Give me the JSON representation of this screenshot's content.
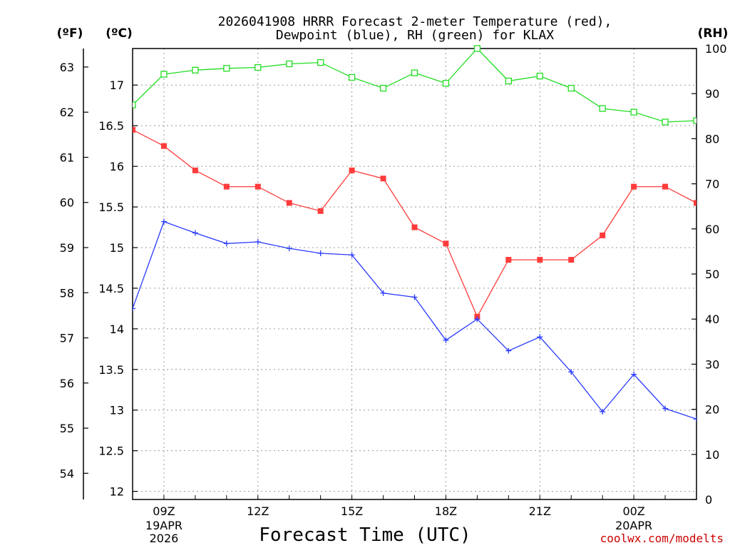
{
  "chart_data": {
    "type": "line",
    "title_line1": "2026041908 HRRR Forecast 2-meter Temperature (red),",
    "title_line2": "Dewpoint (blue), RH (green) for KLAX",
    "xlabel": "Forecast Time (UTC)",
    "credit": "coolwx.com/modelts",
    "left_f_unit": "(ºF)",
    "left_c_unit": "(ºC)",
    "right_unit": "(RH)",
    "x_hours": [
      8,
      9,
      10,
      11,
      12,
      13,
      14,
      15,
      16,
      17,
      18,
      19,
      20,
      21,
      22,
      23,
      24,
      25,
      26
    ],
    "xlim": [
      8,
      26
    ],
    "x_ticks": [
      {
        "hour": 9,
        "label": "09Z",
        "sub1": "19APR",
        "sub2": "2026"
      },
      {
        "hour": 12,
        "label": "12Z",
        "sub1": "",
        "sub2": ""
      },
      {
        "hour": 15,
        "label": "15Z",
        "sub1": "",
        "sub2": ""
      },
      {
        "hour": 18,
        "label": "18Z",
        "sub1": "",
        "sub2": ""
      },
      {
        "hour": 21,
        "label": "21Z",
        "sub1": "",
        "sub2": ""
      },
      {
        "hour": 24,
        "label": "00Z",
        "sub1": "20APR",
        "sub2": ""
      }
    ],
    "c_range": [
      11.9,
      17.45
    ],
    "c_ticks": [
      "12",
      "12.5",
      "13",
      "13.5",
      "14",
      "14.5",
      "15",
      "15.5",
      "16",
      "16.5",
      "17"
    ],
    "f_ticks": [
      "54",
      "55",
      "56",
      "57",
      "58",
      "59",
      "60",
      "61",
      "62",
      "63"
    ],
    "rh_range": [
      0,
      100
    ],
    "rh_ticks": [
      "0",
      "10",
      "20",
      "30",
      "40",
      "50",
      "60",
      "70",
      "80",
      "90",
      "100"
    ],
    "series": [
      {
        "name": "Temperature",
        "unit": "C",
        "color": "#ff3b3b",
        "marker": "filled-square",
        "values": [
          16.45,
          16.25,
          15.95,
          15.75,
          15.75,
          15.55,
          15.45,
          15.95,
          15.85,
          15.25,
          15.05,
          14.15,
          14.85,
          14.85,
          14.85,
          15.15,
          15.75,
          15.75,
          15.55
        ]
      },
      {
        "name": "Dewpoint",
        "unit": "C",
        "color": "#2b3bff",
        "marker": "plus",
        "values": [
          14.25,
          15.32,
          15.18,
          15.05,
          15.07,
          14.99,
          14.93,
          14.91,
          14.44,
          14.39,
          13.86,
          14.12,
          13.73,
          13.9,
          13.47,
          12.98,
          13.44,
          13.02,
          12.89
        ]
      },
      {
        "name": "RH",
        "unit": "%",
        "color": "#22dd22",
        "marker": "open-square",
        "values": [
          87.5,
          94.3,
          95.2,
          95.6,
          95.8,
          96.6,
          96.9,
          93.6,
          91.2,
          94.6,
          92.3,
          100,
          92.8,
          93.9,
          91.2,
          86.7,
          85.9,
          83.7,
          84.0
        ]
      }
    ]
  }
}
